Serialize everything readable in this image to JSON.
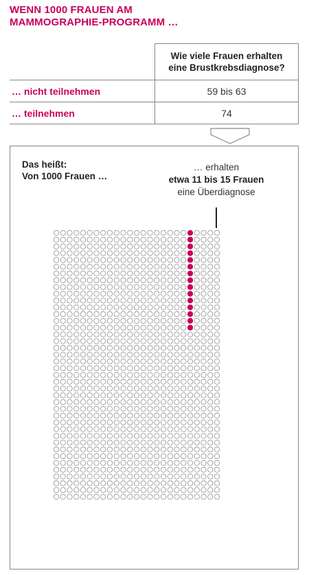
{
  "colors": {
    "accent": "#c8005a",
    "circle_outline": "#9a9a9a",
    "border": "#888888"
  },
  "title": {
    "line1": "WENN 1000 FRAUEN AM",
    "line2": "MAMMOGRAPHIE-PROGRAMM …"
  },
  "table": {
    "header": {
      "line1": "Wie viele Frauen erhalten",
      "line2": "eine Brustkrebsdiagnose?"
    },
    "rows": [
      {
        "label": "… nicht teilnehmen",
        "value": "59 bis 63"
      },
      {
        "label": "… teilnehmen",
        "value": "74"
      }
    ]
  },
  "icons": {
    "arrow": "chevron-down-icon"
  },
  "explanation": {
    "line1": "Das heißt:",
    "line2": "Von 1000 Frauen …",
    "callout": {
      "line1": "… erhalten",
      "line2": "etwa 11 bis 15 Frauen",
      "line3": "eine Überdiagnose"
    }
  },
  "chart_data": {
    "type": "icon-array",
    "total": 1000,
    "columns": 25,
    "rows": 40,
    "highlighted": 15,
    "highlighted_column": 21
  }
}
